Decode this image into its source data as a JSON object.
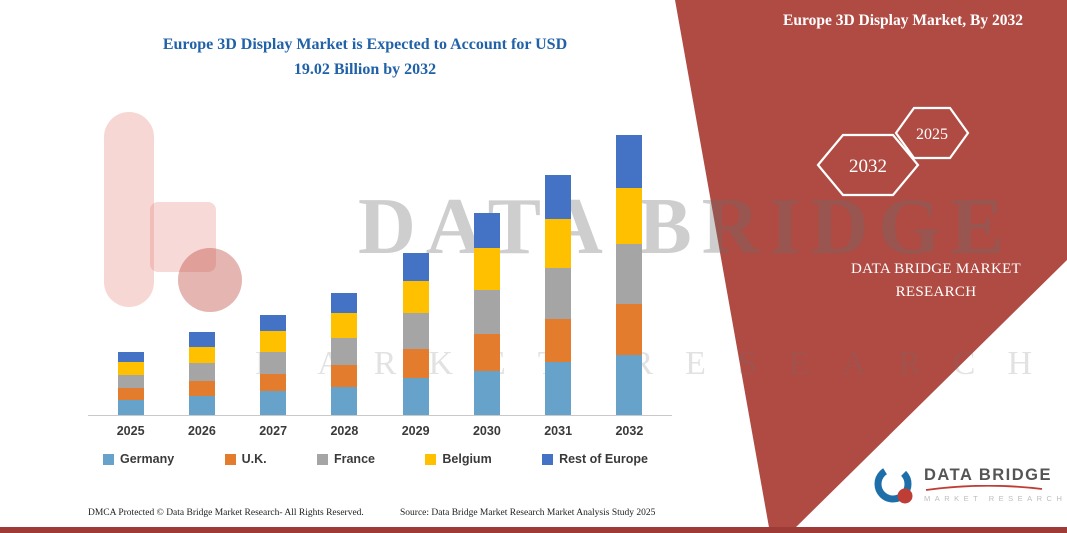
{
  "page": {
    "background": "#FFFFFF",
    "accent_red": "#B04B44",
    "bottom_bar_color": "#9F3B37",
    "title_blue": "#2061A8"
  },
  "chart_title": {
    "line1": "Europe 3D Display Market is Expected to Account for USD",
    "line2": "19.02 Billion by 2032"
  },
  "chart_data": {
    "type": "bar",
    "stacked": true,
    "title": "Europe 3D Display Market is Expected to Account for USD 19.02 Billion by 2032",
    "unit": "USD Billion",
    "categories": [
      "2025",
      "2026",
      "2027",
      "2028",
      "2029",
      "2030",
      "2031",
      "2032"
    ],
    "series": [
      {
        "name": "Germany",
        "color": "#67A2CB",
        "values": [
          1.0,
          1.3,
          1.6,
          1.9,
          2.5,
          3.0,
          3.6,
          4.1
        ]
      },
      {
        "name": "U.K.",
        "color": "#E37D2D",
        "values": [
          0.8,
          1.0,
          1.2,
          1.5,
          2.0,
          2.5,
          2.9,
          3.4
        ]
      },
      {
        "name": "France",
        "color": "#A5A5A5",
        "values": [
          0.9,
          1.2,
          1.5,
          1.8,
          2.4,
          3.0,
          3.5,
          4.1
        ]
      },
      {
        "name": "Belgium",
        "color": "#FFC000",
        "values": [
          0.9,
          1.1,
          1.4,
          1.7,
          2.2,
          2.8,
          3.3,
          3.8
        ]
      },
      {
        "name": "Rest of Europe",
        "color": "#4472C4",
        "values": [
          0.7,
          1.0,
          1.1,
          1.4,
          1.9,
          2.4,
          3.0,
          3.62
        ]
      }
    ],
    "totals": [
      4.3,
      5.6,
      6.8,
      8.3,
      11.0,
      13.7,
      16.3,
      19.02
    ],
    "ylim": [
      0,
      20
    ],
    "grid": false,
    "y_axis_labels": false,
    "legend_position": "bottom"
  },
  "brand_panel": {
    "title": "Europe 3D Display Market, By 2032",
    "hexagon_back": "2032",
    "hexagon_front": "2025",
    "brand_text": "DATA BRIDGE MARKET RESEARCH"
  },
  "watermark": {
    "line1": "DATA BRIDGE",
    "line2": "MARKET RESEARCH"
  },
  "logo": {
    "name": "DATA BRIDGE",
    "tagline": "MARKET RESEARCH"
  },
  "footer": {
    "dmca": "DMCA Protected © Data Bridge Market Research-  All Rights Reserved.",
    "source": "Source: Data Bridge Market Research  Market Analysis Study 2025"
  }
}
